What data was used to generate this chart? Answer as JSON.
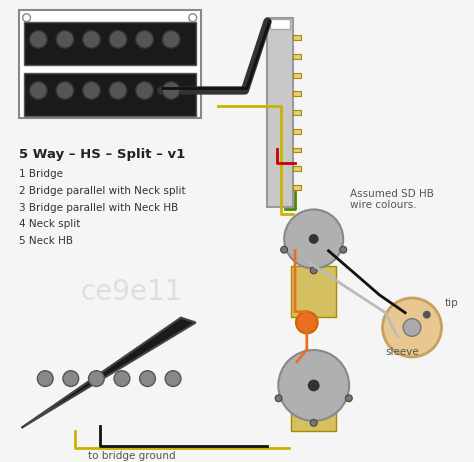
{
  "bg_color": "#f5f5f5",
  "title": "5 Way – HS – Split – v1",
  "switch_labels": [
    "1 Bridge",
    "2 Bridge parallel with Neck split",
    "3 Bridge parallel with Neck HB",
    "4 Neck split",
    "5 Neck HB"
  ],
  "note": "Assumed SD HB\nwire colours.",
  "watermark": "ce9e11",
  "bottom_label": "to bridge ground",
  "tip_label": "tip",
  "sleeve_label": "sleeve",
  "hb_pickup_color": "#1a1a1a",
  "tele_pickup_color": "#1a1a1a",
  "pot_color": "#b0b0b0",
  "switch_color": "#c8c8c8",
  "wire_black": "#111111",
  "wire_yellow": "#c8b400",
  "wire_green": "#4a8a00",
  "wire_red": "#cc0000",
  "wire_gray": "#999999",
  "wire_orange": "#e87020",
  "cap_color": "#e87020"
}
